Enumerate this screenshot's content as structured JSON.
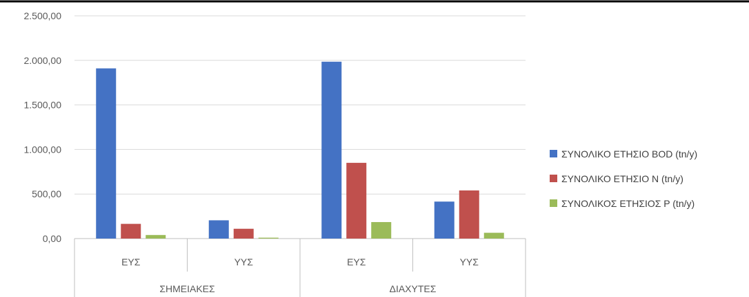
{
  "chart_data": {
    "type": "bar",
    "groups": [
      {
        "label": "ΣΗΜΕΙΑΚΕΣ",
        "categories": [
          "ΕΥΣ",
          "ΥΥΣ"
        ]
      },
      {
        "label": "ΔΙΑΧΥΤΕΣ",
        "categories": [
          "ΕΥΣ",
          "ΥΥΣ"
        ]
      }
    ],
    "series": [
      {
        "name": "ΣΥΝΟΛΙΚΟ ΕΤΗΣΙΟ BOD (tn/y)",
        "color": "#4472C4",
        "values": [
          1910,
          205,
          1985,
          415
        ]
      },
      {
        "name": "ΣΥΝΟΛΙΚΟ ΕΤΗΣΙΟ Ν (tn/y)",
        "color": "#C0504D",
        "values": [
          165,
          110,
          850,
          540
        ]
      },
      {
        "name": "ΣΥΝΟΛΙΚΟΣ ΕΤΗΣΙΟΣ P (tn/y)",
        "color": "#9BBB59",
        "values": [
          40,
          10,
          185,
          65
        ]
      }
    ],
    "yticks": [
      "0,00",
      "500,00",
      "1.000,00",
      "1.500,00",
      "2.000,00",
      "2.500,00"
    ],
    "ylim": [
      0,
      2500
    ],
    "grid": true,
    "legend": "right"
  }
}
